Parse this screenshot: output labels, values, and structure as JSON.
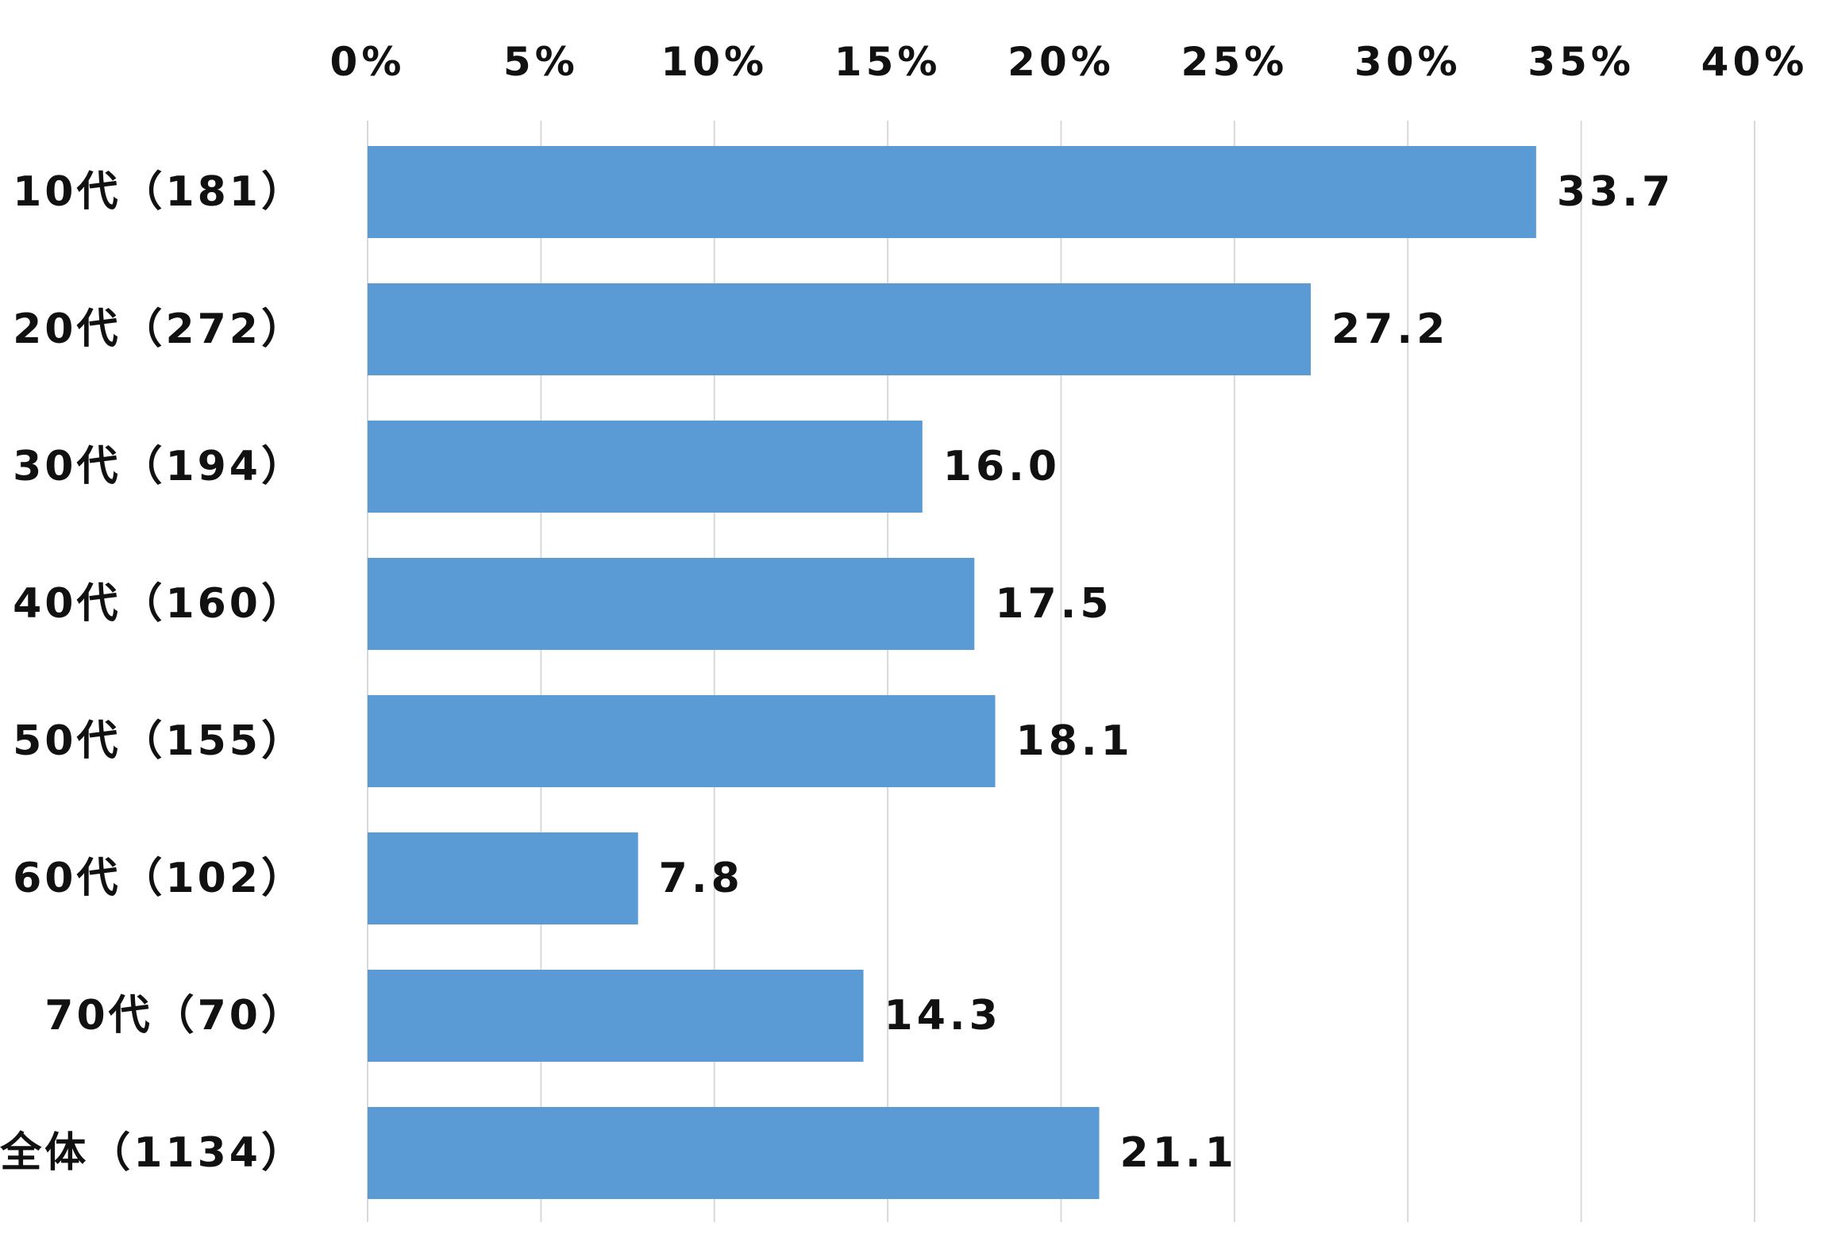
{
  "colors": {
    "bar": "#5b9bd5",
    "grid": "#d9d9d9"
  },
  "chart_data": {
    "type": "bar",
    "orientation": "horizontal",
    "title": "",
    "xlabel": "",
    "ylabel": "",
    "xlim": [
      0,
      40
    ],
    "x_ticks": [
      0,
      5,
      10,
      15,
      20,
      25,
      30,
      35,
      40
    ],
    "x_tick_labels": [
      "0%",
      "5%",
      "10%",
      "15%",
      "20%",
      "25%",
      "30%",
      "35%",
      "40%"
    ],
    "x_axis_position": "top",
    "grid": "vertical",
    "legend": "none",
    "categories": [
      "10代（181）",
      "20代（272）",
      "30代（194）",
      "40代（160）",
      "50代（155）",
      "60代（102）",
      "70代（70）",
      "全体（1134）"
    ],
    "values": [
      33.7,
      27.2,
      16.0,
      17.5,
      18.1,
      7.8,
      14.3,
      21.1
    ],
    "value_labels": [
      "33.7",
      "27.2",
      "16.0",
      "17.5",
      "18.1",
      "7.8",
      "14.3",
      "21.1"
    ]
  }
}
